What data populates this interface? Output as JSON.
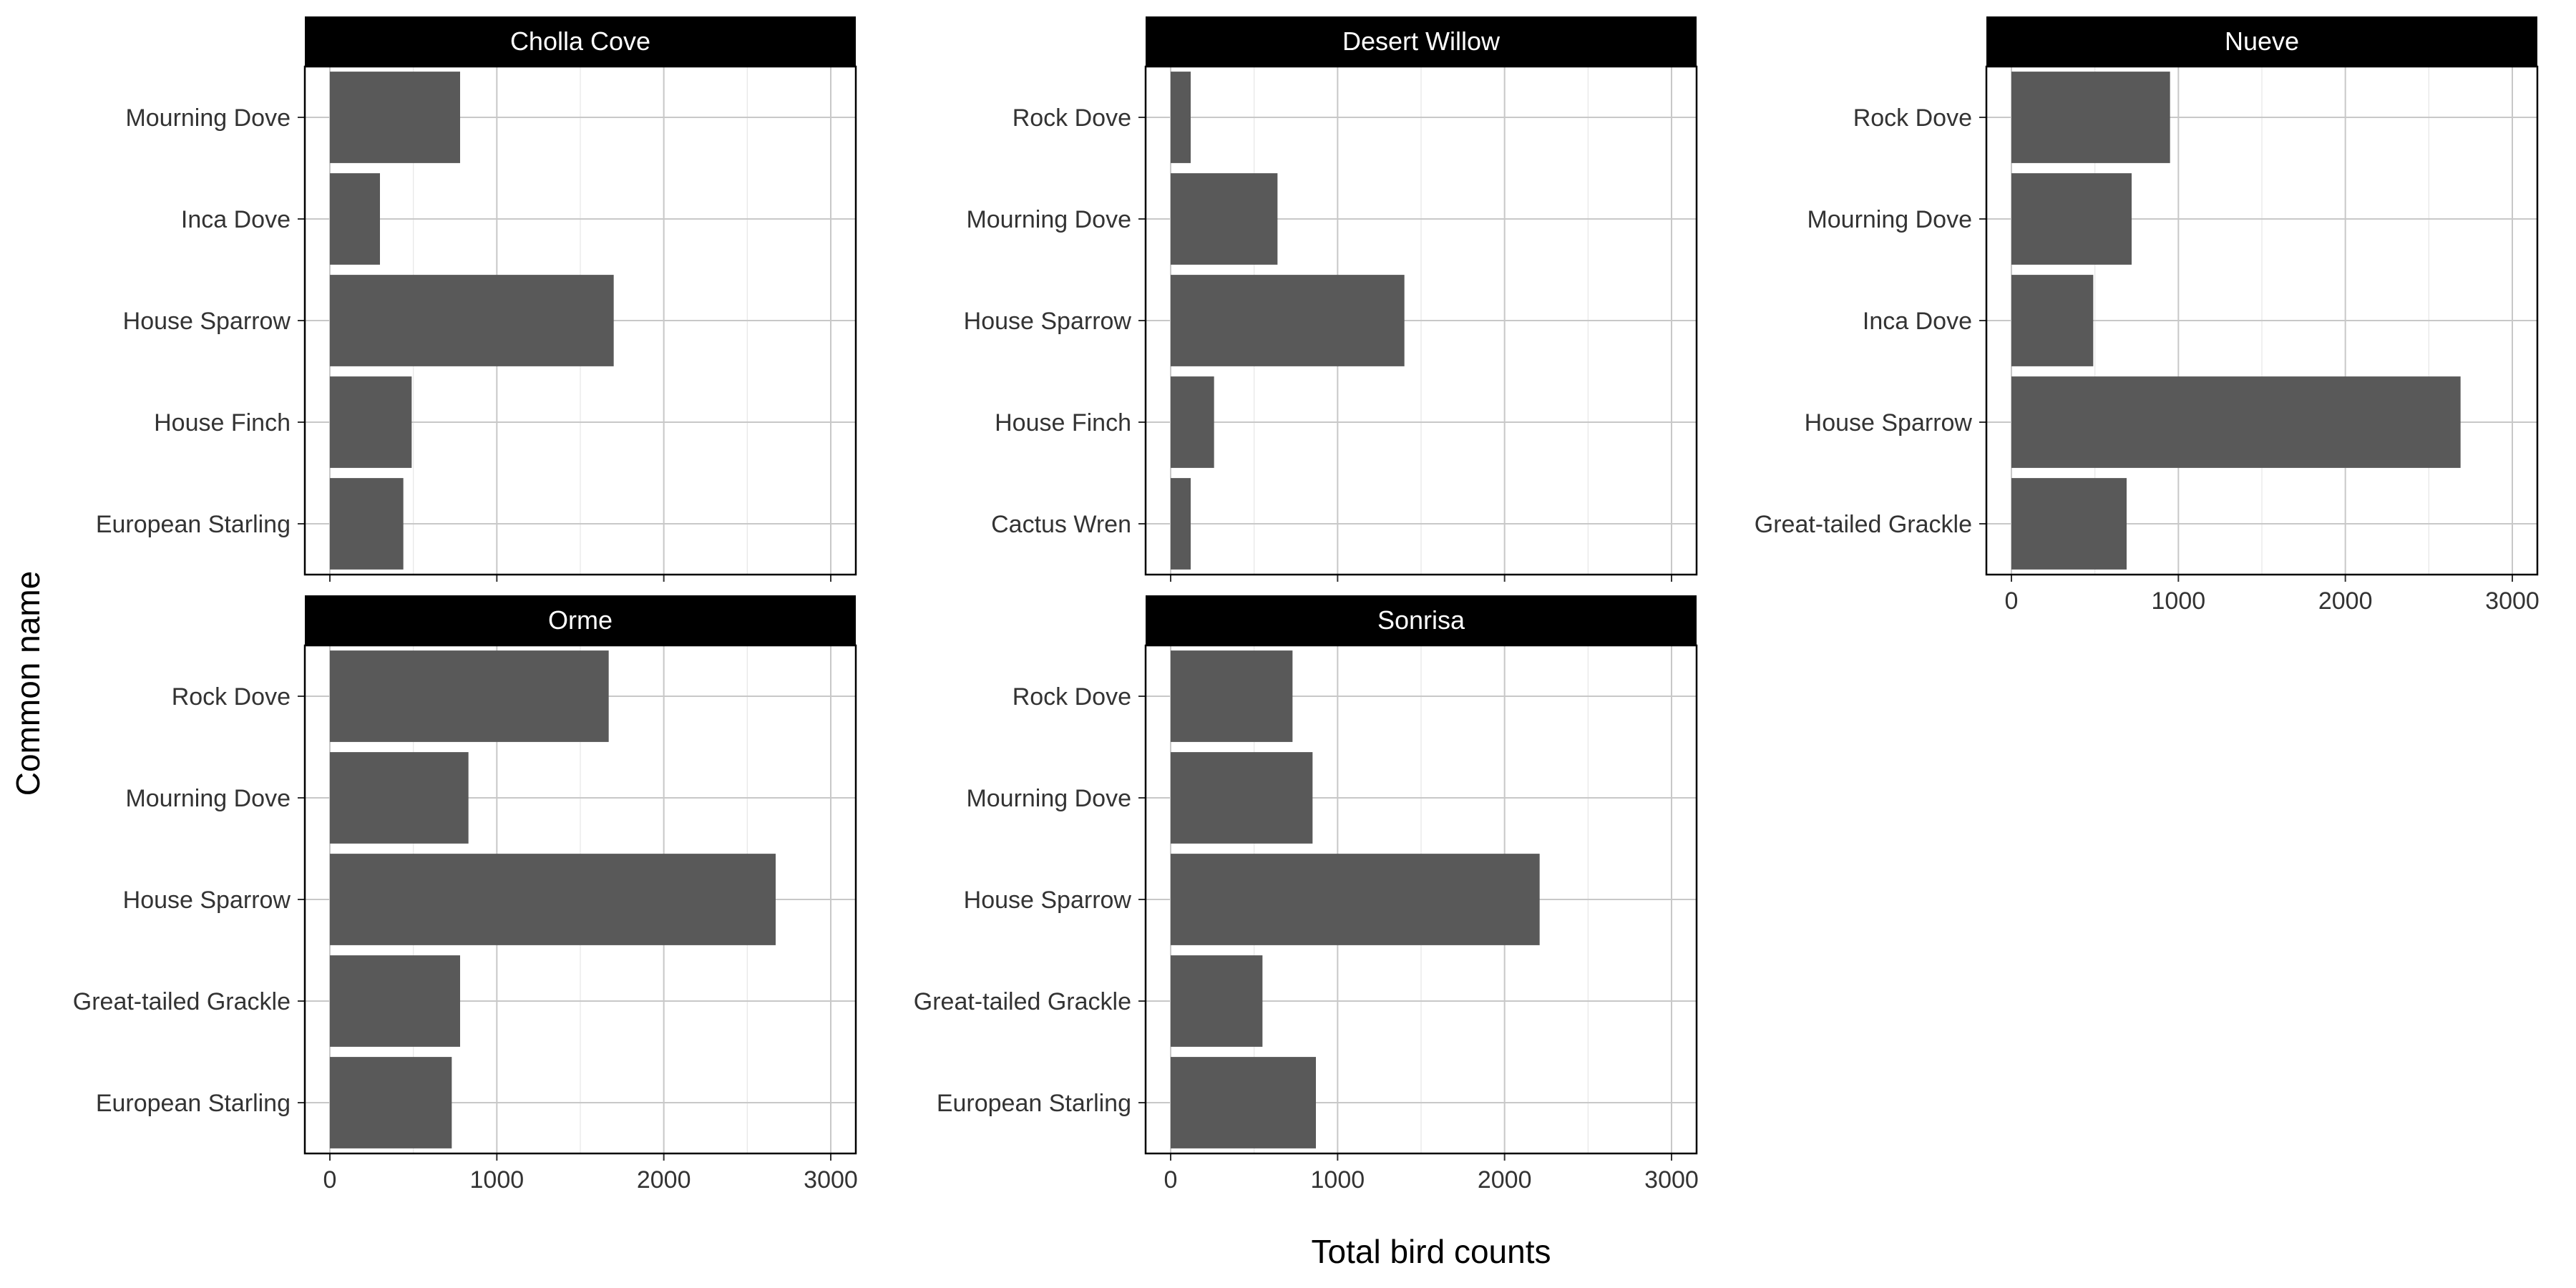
{
  "chart_data": {
    "type": "bar",
    "orientation": "horizontal",
    "xlabel": "Total bird counts",
    "ylabel": "Common name",
    "xlim": [
      0,
      3000
    ],
    "x_ticks": [
      0,
      1000,
      2000,
      3000
    ],
    "grid": true,
    "panels": [
      {
        "title": "Cholla Cove",
        "categories": [
          "Mourning Dove",
          "Inca Dove",
          "House Sparrow",
          "House Finch",
          "European Starling"
        ],
        "values": [
          780,
          300,
          1700,
          490,
          440
        ]
      },
      {
        "title": "Desert Willow",
        "categories": [
          "Rock Dove",
          "Mourning Dove",
          "House Sparrow",
          "House Finch",
          "Cactus Wren"
        ],
        "values": [
          120,
          640,
          1400,
          260,
          120
        ]
      },
      {
        "title": "Nueve",
        "categories": [
          "Rock Dove",
          "Mourning Dove",
          "Inca Dove",
          "House Sparrow",
          "Great-tailed Grackle"
        ],
        "values": [
          950,
          720,
          490,
          2690,
          690
        ]
      },
      {
        "title": "Orme",
        "categories": [
          "Rock Dove",
          "Mourning Dove",
          "House Sparrow",
          "Great-tailed Grackle",
          "European Starling"
        ],
        "values": [
          1670,
          830,
          2670,
          780,
          730
        ]
      },
      {
        "title": "Sonrisa",
        "categories": [
          "Rock Dove",
          "Mourning Dove",
          "House Sparrow",
          "Great-tailed Grackle",
          "European Starling"
        ],
        "values": [
          730,
          850,
          2210,
          550,
          870
        ]
      }
    ]
  },
  "colors": {
    "bar": "#595959",
    "strip_bg": "#000000",
    "strip_text": "#ffffff",
    "grid_major": "#c8c8c8",
    "grid_minor": "#e6e6e6",
    "panel_border": "#000000"
  }
}
